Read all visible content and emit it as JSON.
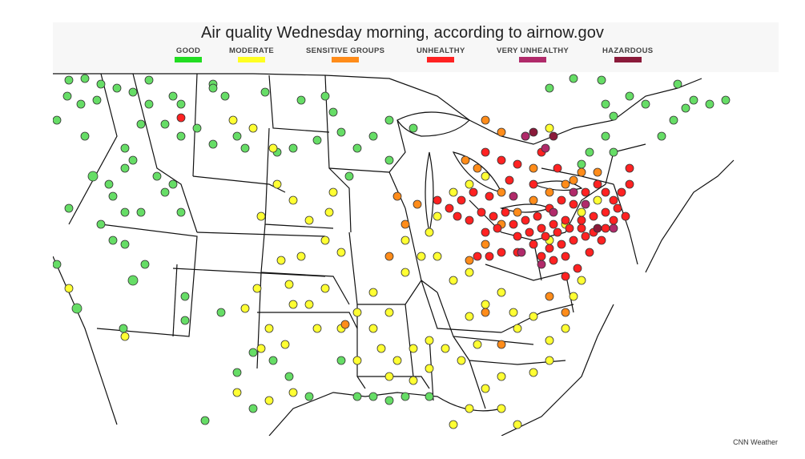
{
  "title": "Air quality Wednesday morning, according to airnow.gov",
  "credit": "CNN Weather",
  "legend": [
    {
      "label": "GOOD",
      "color": "#22dd22"
    },
    {
      "label": "MODERATE",
      "color": "#ffff22"
    },
    {
      "label": "SENSITIVE GROUPS",
      "color": "#ff8c1a"
    },
    {
      "label": "UNHEALTHY",
      "color": "#ff2222"
    },
    {
      "label": "VERY UNHEALTHY",
      "color": "#b02a6a"
    },
    {
      "label": "HAZARDOUS",
      "color": "#8a1a3a"
    }
  ],
  "map": {
    "region": "Central and eastern United States",
    "dominant_category": "GOOD in north-west, MODERATE in central and south, UNHEALTHY and VERY UNHEALTHY in north-east"
  }
}
